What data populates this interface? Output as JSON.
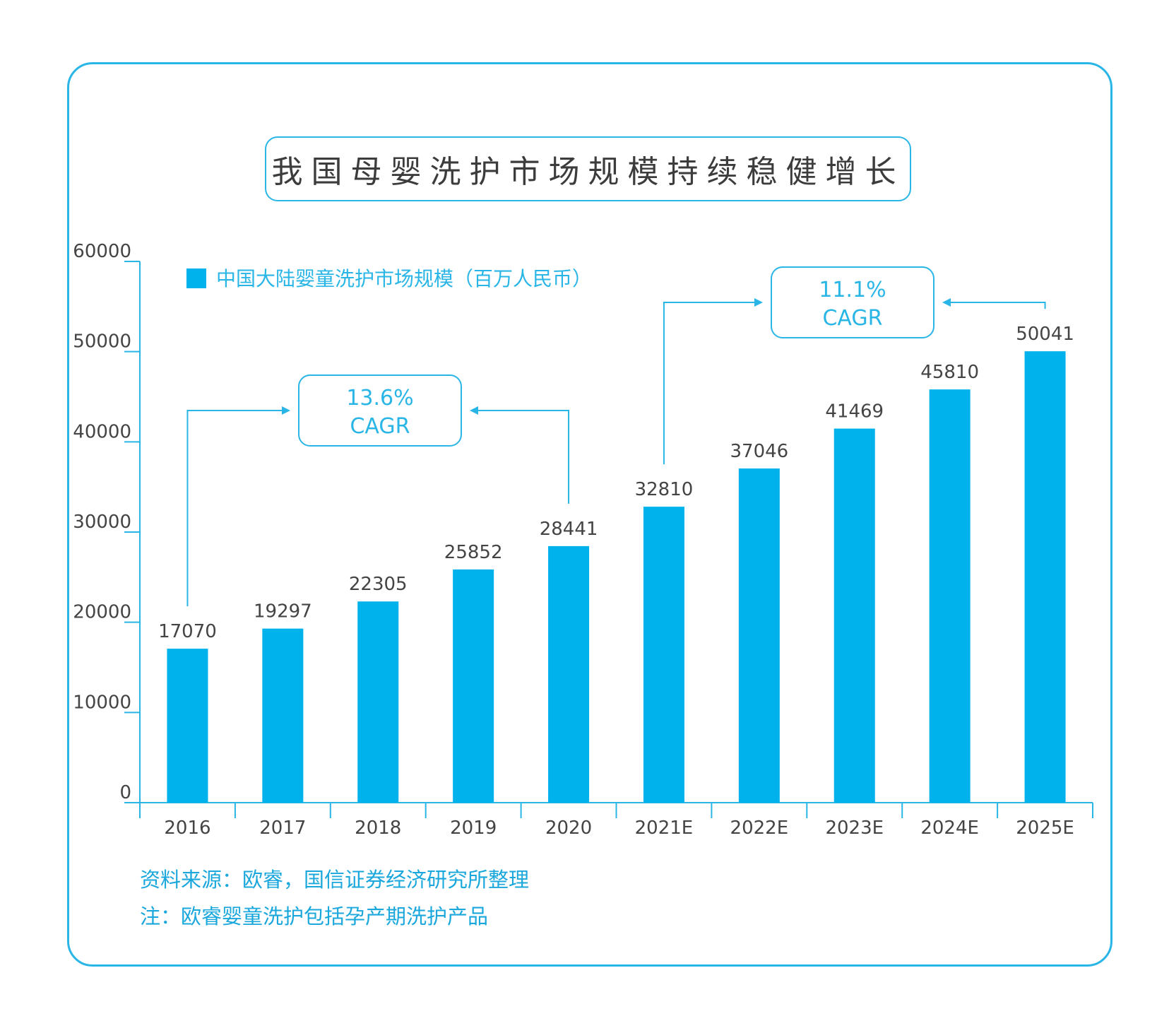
{
  "page": {
    "title": "我国母婴洗护市场规模持续稳健增长",
    "source_note": "资料来源：欧睿，国信证券经济研究所整理",
    "footnote": "注：欧睿婴童洗护包括孕产期洗护产品"
  },
  "colors": {
    "bar": "#00b2eb",
    "accent": "#29b6e6",
    "axis": "#29b6e6",
    "text": "#444444"
  },
  "chart_data": {
    "type": "bar",
    "title": "我国母婴洗护市场规模持续稳健增长",
    "categories": [
      "2016",
      "2017",
      "2018",
      "2019",
      "2020",
      "2021E",
      "2022E",
      "2023E",
      "2024E",
      "2025E"
    ],
    "series": [
      {
        "name": "中国大陆婴童洗护市场规模（百万人民币）",
        "values": [
          17070,
          19297,
          22305,
          25852,
          28441,
          32810,
          37046,
          41469,
          45810,
          50041
        ]
      }
    ],
    "yticks": [
      "0",
      "10000",
      "20000",
      "30000",
      "40000",
      "50000",
      "60000"
    ],
    "ylim": [
      0,
      60000
    ],
    "xlabel": "",
    "ylabel": "",
    "grid": false,
    "legend": "top-left",
    "annotations": [
      {
        "line1": "13.6%",
        "line2": "CAGR",
        "from": "2016",
        "to": "2020"
      },
      {
        "line1": "11.1%",
        "line2": "CAGR",
        "from": "2021E",
        "to": "2025E"
      }
    ]
  }
}
